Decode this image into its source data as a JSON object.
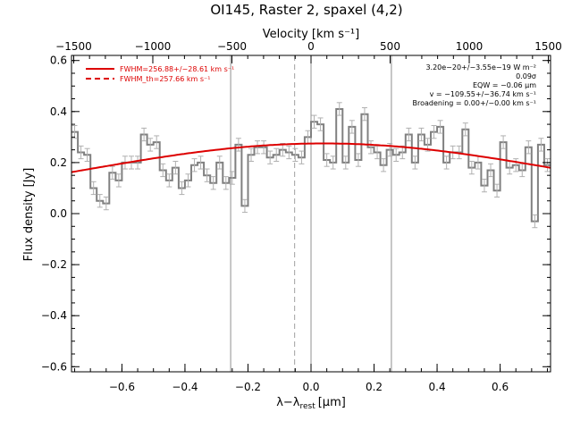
{
  "chart_data": {
    "type": "line",
    "title": "OI145, Raster 2, spaxel (4,2)",
    "top_axis_label": "Velocity [km s⁻¹]",
    "top_ticks": [
      -1500,
      -1000,
      -500,
      0,
      500,
      1000,
      1500
    ],
    "top_tick_labels": [
      "−1500",
      "−1000",
      "−500",
      "0",
      "500",
      "1000",
      "1500"
    ],
    "xlabel": "λ−λ",
    "xlabel_sub": "rest",
    "xlabel_unit": "[μm]",
    "ylabel": "Flux density [Jy]",
    "xlim": [
      -0.76,
      0.76
    ],
    "ylim": [
      -0.62,
      0.62
    ],
    "x_ticks": [
      -0.6,
      -0.4,
      -0.2,
      0.0,
      0.2,
      0.4,
      0.6
    ],
    "x_tick_labels": [
      "−0.6",
      "−0.4",
      "−0.2",
      "0.0",
      "0.2",
      "0.4",
      "0.6"
    ],
    "y_ticks": [
      -0.6,
      -0.4,
      -0.2,
      0.0,
      0.2,
      0.4,
      0.6
    ],
    "y_tick_labels": [
      "−0.6",
      "−0.4",
      "−0.2",
      "0.0",
      "0.2",
      "0.4",
      "0.6"
    ],
    "vlines_solid": [
      -0.255,
      0.0,
      0.255
    ],
    "vlines_dashed": [
      -0.052
    ],
    "legend": [
      {
        "label": "FWHM=256.88+/−28.61 km s⁻¹",
        "style": "solid",
        "color": "#dd0000"
      },
      {
        "label": "FWHM_th=257.66 km s⁻¹",
        "style": "dashed",
        "color": "#dd0000"
      }
    ],
    "annotations": [
      "3.20e−20+/−3.55e−19 W m⁻²",
      "0.09σ",
      "EQW = −0.06 μm",
      "v = −109.55+/−36.74 km s⁻¹",
      "Broadening = 0.00+/−0.00 km s⁻¹"
    ],
    "series": [
      {
        "name": "spectrum",
        "style": "step",
        "color": "#808080",
        "x": [
          -0.75,
          -0.73,
          -0.71,
          -0.69,
          -0.67,
          -0.65,
          -0.63,
          -0.61,
          -0.59,
          -0.57,
          -0.55,
          -0.53,
          -0.51,
          -0.49,
          -0.47,
          -0.45,
          -0.43,
          -0.41,
          -0.39,
          -0.37,
          -0.35,
          -0.33,
          -0.31,
          -0.29,
          -0.27,
          -0.25,
          -0.23,
          -0.21,
          -0.19,
          -0.17,
          -0.15,
          -0.13,
          -0.11,
          -0.09,
          -0.07,
          -0.05,
          -0.03,
          -0.01,
          0.01,
          0.03,
          0.05,
          0.07,
          0.09,
          0.11,
          0.13,
          0.15,
          0.17,
          0.19,
          0.21,
          0.23,
          0.25,
          0.27,
          0.29,
          0.31,
          0.33,
          0.35,
          0.37,
          0.39,
          0.41,
          0.43,
          0.45,
          0.47,
          0.49,
          0.51,
          0.53,
          0.55,
          0.57,
          0.59,
          0.61,
          0.63,
          0.65,
          0.67,
          0.69,
          0.71,
          0.73,
          0.75
        ],
        "y": [
          0.32,
          0.24,
          0.23,
          0.1,
          0.05,
          0.04,
          0.16,
          0.13,
          0.2,
          0.2,
          0.2,
          0.31,
          0.27,
          0.28,
          0.17,
          0.13,
          0.18,
          0.1,
          0.13,
          0.19,
          0.2,
          0.15,
          0.12,
          0.2,
          0.12,
          0.14,
          0.27,
          0.03,
          0.23,
          0.26,
          0.26,
          0.22,
          0.23,
          0.25,
          0.24,
          0.23,
          0.22,
          0.3,
          0.36,
          0.35,
          0.21,
          0.2,
          0.41,
          0.2,
          0.34,
          0.21,
          0.39,
          0.26,
          0.24,
          0.19,
          0.25,
          0.23,
          0.24,
          0.31,
          0.2,
          0.31,
          0.27,
          0.32,
          0.34,
          0.2,
          0.24,
          0.24,
          0.33,
          0.18,
          0.2,
          0.11,
          0.17,
          0.09,
          0.28,
          0.18,
          0.19,
          0.17,
          0.26,
          -0.03,
          0.27,
          0.19
        ],
        "error": 0.025
      },
      {
        "name": "fit",
        "style": "solid",
        "color": "#dd0000",
        "gaussian": {
          "amplitude": 0.275,
          "center": 0.04,
          "sigma": 0.78
        }
      }
    ]
  }
}
